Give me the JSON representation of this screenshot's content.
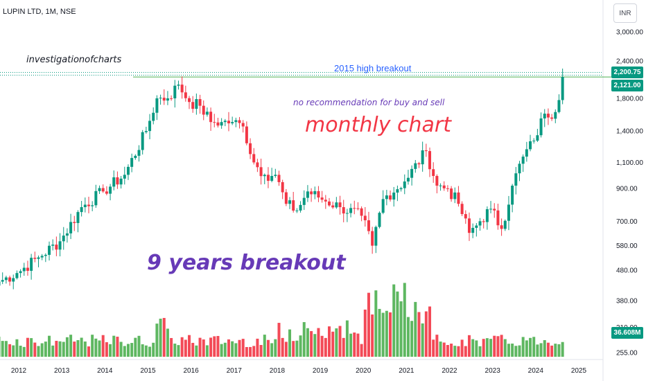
{
  "header": {
    "symbol_text": "LUPIN LTD, 1M, NSE",
    "currency_button": "INR"
  },
  "annotations": {
    "author": "investigationofcharts",
    "high_breakout": "2015 high breakout",
    "disclaimer": "no recommendation for buy and sell",
    "chart_type_note": "monthly chart",
    "breakout_note": "9 years breakout"
  },
  "price_tags": {
    "high": "2,200.75",
    "last": "2,121.00",
    "volume": "36.608M"
  },
  "colors": {
    "up": "#089981",
    "down": "#f23645",
    "volume_up": "#4caf50",
    "volume_down": "#f23645",
    "breakout_line": "#4caf50",
    "dotted_line": "#089981"
  },
  "chart_data": {
    "type": "candlestick",
    "interval": "1M",
    "exchange": "NSE",
    "scale": "log",
    "y_ticks": [
      "3,000.00",
      "2,400.00",
      "1,800.00",
      "1,400.00",
      "1,100.00",
      "900.00",
      "700.00",
      "580.00",
      "480.00",
      "380.00",
      "310.00",
      "255.00"
    ],
    "x_ticks": [
      "2012",
      "2013",
      "2014",
      "2015",
      "2016",
      "2017",
      "2018",
      "2019",
      "2020",
      "2021",
      "2022",
      "2023",
      "2024",
      "2025"
    ],
    "breakout_level": 2121,
    "last_high": 2200.75,
    "last_volume": "36.608M",
    "anchors": [
      {
        "date": "2011-07",
        "close": 440
      },
      {
        "date": "2011-12",
        "close": 470
      },
      {
        "date": "2012-06",
        "close": 530
      },
      {
        "date": "2012-12",
        "close": 600
      },
      {
        "date": "2013-06",
        "close": 780
      },
      {
        "date": "2013-12",
        "close": 880
      },
      {
        "date": "2014-06",
        "close": 1000
      },
      {
        "date": "2014-12",
        "close": 1400
      },
      {
        "date": "2015-03",
        "close": 1800
      },
      {
        "date": "2015-06",
        "close": 1800
      },
      {
        "date": "2015-09",
        "close": 2000
      },
      {
        "date": "2015-12",
        "close": 1750
      },
      {
        "date": "2016-03",
        "close": 1700
      },
      {
        "date": "2016-06",
        "close": 1500
      },
      {
        "date": "2016-09",
        "close": 1500
      },
      {
        "date": "2016-12",
        "close": 1500
      },
      {
        "date": "2017-03",
        "close": 1450
      },
      {
        "date": "2017-06",
        "close": 1100
      },
      {
        "date": "2017-09",
        "close": 1000
      },
      {
        "date": "2017-12",
        "close": 1000
      },
      {
        "date": "2018-03",
        "close": 800
      },
      {
        "date": "2018-06",
        "close": 760
      },
      {
        "date": "2018-09",
        "close": 880
      },
      {
        "date": "2018-12",
        "close": 840
      },
      {
        "date": "2019-06",
        "close": 780
      },
      {
        "date": "2019-12",
        "close": 730
      },
      {
        "date": "2020-03",
        "close": 580
      },
      {
        "date": "2020-06",
        "close": 830
      },
      {
        "date": "2020-12",
        "close": 950
      },
      {
        "date": "2021-06",
        "close": 1200
      },
      {
        "date": "2021-09",
        "close": 920
      },
      {
        "date": "2021-12",
        "close": 900
      },
      {
        "date": "2022-03",
        "close": 800
      },
      {
        "date": "2022-06",
        "close": 640
      },
      {
        "date": "2022-09",
        "close": 700
      },
      {
        "date": "2022-12",
        "close": 770
      },
      {
        "date": "2023-03",
        "close": 660
      },
      {
        "date": "2023-06",
        "close": 920
      },
      {
        "date": "2023-09",
        "close": 1150
      },
      {
        "date": "2023-12",
        "close": 1300
      },
      {
        "date": "2024-03",
        "close": 1600
      },
      {
        "date": "2024-06",
        "close": 1620
      },
      {
        "date": "2024-08",
        "close": 2121
      }
    ]
  }
}
